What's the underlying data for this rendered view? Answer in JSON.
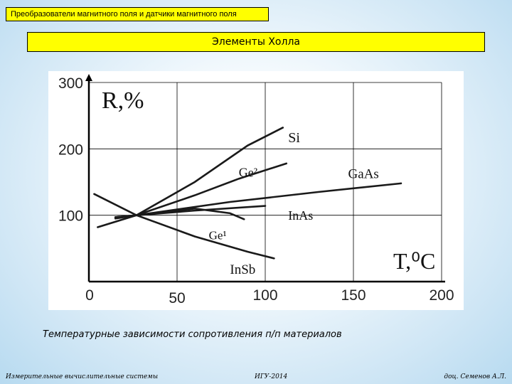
{
  "header": {
    "subject_banner": "Преобразователи магнитного поля и датчики магнитного поля",
    "slide_title": "Элементы Холла"
  },
  "caption": "Температурные зависимости сопротивления п/п материалов",
  "footer": {
    "left": "Измерительные вычислительные системы",
    "center": "ИГУ-2014",
    "right": "доц. Семенов А.Л."
  },
  "colors": {
    "banner_bg": "#ffff00",
    "grid": "#000000",
    "curve": "#1a1a1a"
  },
  "chart_data": {
    "type": "line",
    "ylabel": "R,%",
    "xlabel": "T,⁰C",
    "xlim": [
      0,
      200
    ],
    "ylim": [
      0,
      300
    ],
    "x_ticks": [
      "0",
      "50",
      "100",
      "150",
      "200"
    ],
    "y_ticks": [
      "100",
      "200",
      "300"
    ],
    "grid": true,
    "series": [
      {
        "name": "Si",
        "x": [
          5,
          27,
          60,
          90,
          110
        ],
        "y": [
          82,
          100,
          150,
          205,
          232
        ]
      },
      {
        "name": "Ge²",
        "x": [
          15,
          27,
          60,
          85,
          112
        ],
        "y": [
          95,
          100,
          130,
          155,
          178
        ]
      },
      {
        "name": "GaAs",
        "x": [
          15,
          27,
          80,
          130,
          177
        ],
        "y": [
          96,
          100,
          120,
          135,
          148
        ]
      },
      {
        "name": "InAs",
        "x": [
          15,
          27,
          60,
          100
        ],
        "y": [
          97,
          100,
          107,
          114
        ]
      },
      {
        "name": "Ge¹",
        "x": [
          15,
          27,
          60,
          80,
          88
        ],
        "y": [
          97,
          100,
          110,
          103,
          94
        ]
      },
      {
        "name": "InSb",
        "x": [
          3,
          27,
          60,
          90,
          105
        ],
        "y": [
          132,
          100,
          68,
          45,
          35
        ]
      }
    ]
  }
}
